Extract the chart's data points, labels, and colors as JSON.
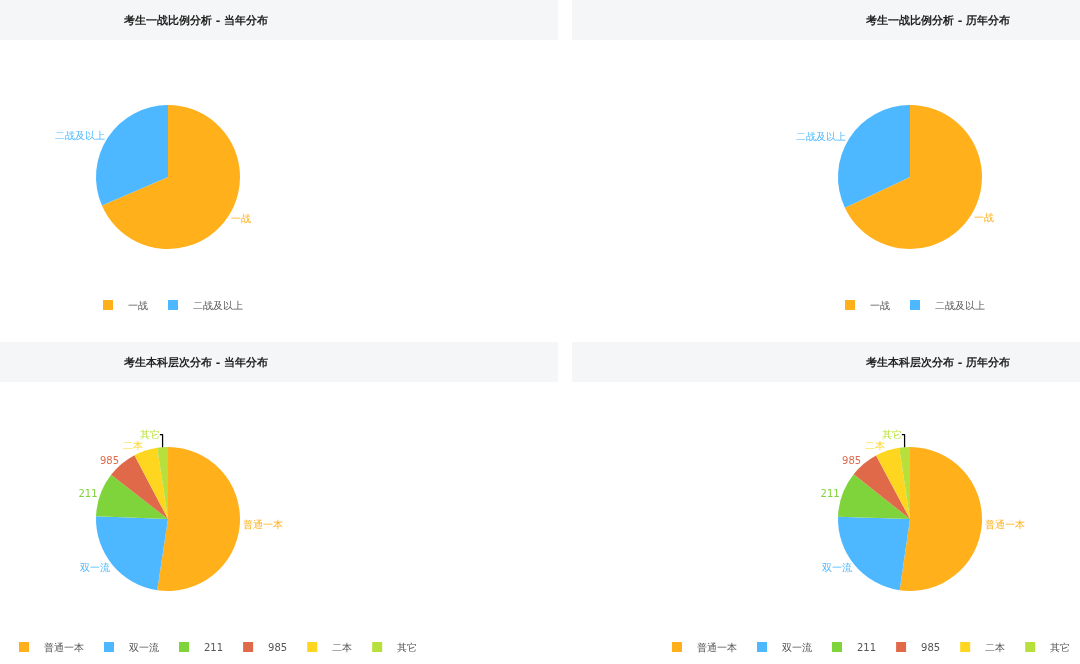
{
  "chart_data": [
    {
      "type": "pie",
      "title": "考生一战比例分析 - 当年分布",
      "categories": [
        "一战",
        "二战及以上"
      ],
      "values": [
        68.5,
        31.5
      ],
      "colors": [
        "#ffb01a",
        "#4db8ff"
      ],
      "legend": "bottom"
    },
    {
      "type": "pie",
      "title": "考生一战比例分析 - 历年分布",
      "categories": [
        "一战",
        "二战及以上"
      ],
      "values": [
        68,
        32
      ],
      "colors": [
        "#ffb01a",
        "#4db8ff"
      ],
      "legend": "bottom"
    },
    {
      "type": "pie",
      "title": "考生本科层次分布 - 当年分布",
      "categories": [
        "普通一本",
        "双一流",
        "211",
        "985",
        "二本",
        "其它"
      ],
      "values": [
        52.4,
        23.2,
        9.9,
        6.8,
        5.3,
        2.4
      ],
      "colors": [
        "#ffb01a",
        "#4db8ff",
        "#7ed43a",
        "#e0694a",
        "#ffd61f",
        "#b8e03c"
      ],
      "legend": "bottom"
    },
    {
      "type": "pie",
      "title": "考生本科层次分布 - 历年分布",
      "categories": [
        "普通一本",
        "双一流",
        "211",
        "985",
        "二本",
        "其它"
      ],
      "values": [
        52.3,
        23.2,
        10.2,
        6.5,
        5.4,
        2.4
      ],
      "colors": [
        "#ffb01a",
        "#4db8ff",
        "#7ed43a",
        "#e0694a",
        "#ffd61f",
        "#b8e03c"
      ],
      "legend": "bottom"
    }
  ]
}
